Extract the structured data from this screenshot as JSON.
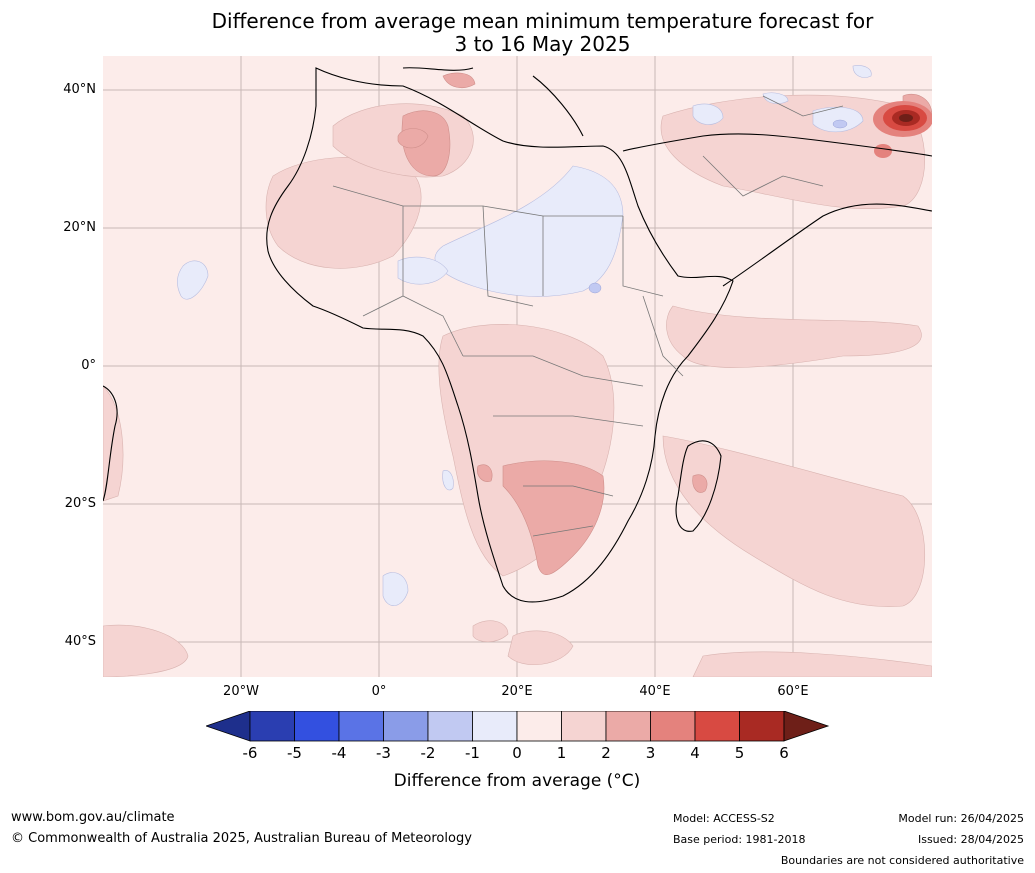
{
  "title": {
    "line1": "Difference from average mean minimum temperature forecast for",
    "line2": "3 to 16 May 2025"
  },
  "map": {
    "lat_labels": [
      "40°N",
      "20°N",
      "0°",
      "20°S",
      "40°S"
    ],
    "lon_labels": [
      "20°W",
      "0°",
      "20°E",
      "40°E",
      "60°E"
    ],
    "background_color": "#fcecea"
  },
  "colorbar": {
    "ticks": [
      "-6",
      "-5",
      "-4",
      "-3",
      "-2",
      "-1",
      "0",
      "1",
      "2",
      "3",
      "4",
      "5",
      "6"
    ],
    "colors": [
      "#1e2f8c",
      "#2a3eb1",
      "#3350e0",
      "#5a73e6",
      "#8a9ce8",
      "#c1c9f2",
      "#e8ebfa",
      "#fcecea",
      "#f5d4d2",
      "#ebaaa7",
      "#e4827d",
      "#d84a42",
      "#a92a23",
      "#6e1f18"
    ],
    "label": "Difference from average (°C)"
  },
  "footer": {
    "website": "www.bom.gov.au/climate",
    "copyright": "© Commonwealth of Australia 2025, Australian Bureau of Meteorology",
    "model": "Model: ACCESS-S2",
    "base_period": "Base period: 1981-2018",
    "model_run": "Model run: 26/04/2025",
    "issued": "Issued: 28/04/2025",
    "boundaries_note": "Boundaries are not considered authoritative"
  }
}
